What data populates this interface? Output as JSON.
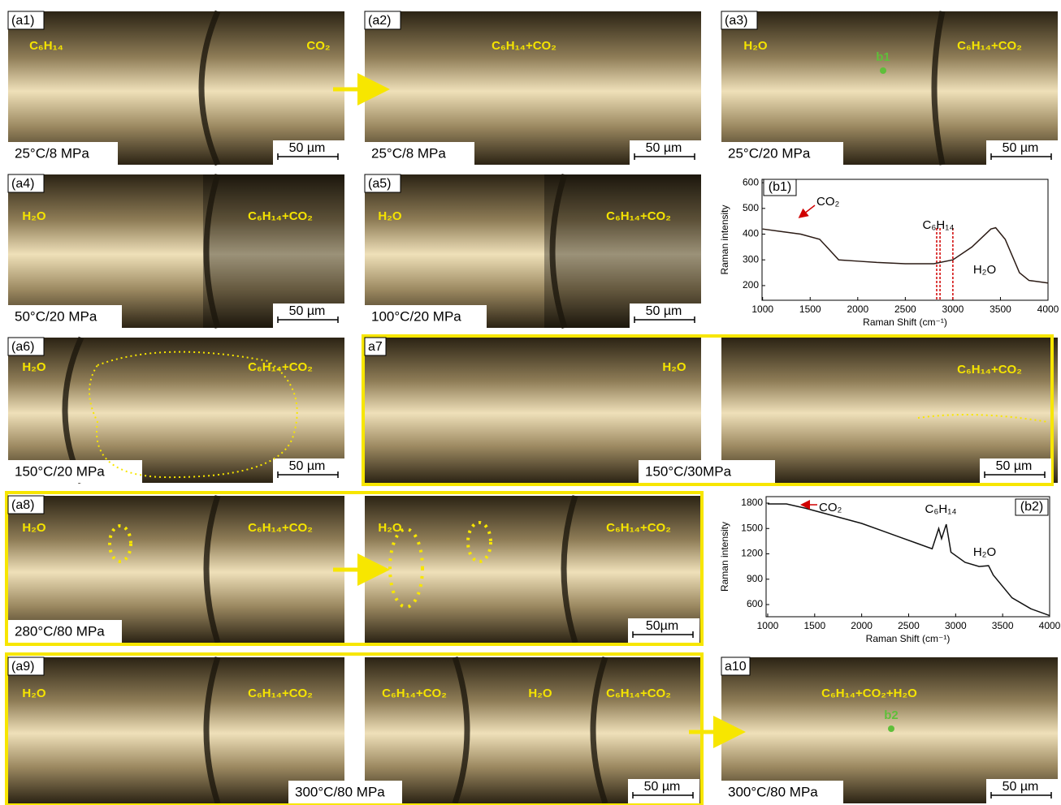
{
  "panels": [
    {
      "id": "(a1)",
      "phases": [
        "C₆H₁₄",
        "CO₂"
      ],
      "condition": "25°C/8 MPa",
      "scale": "50 µm"
    },
    {
      "id": "(a2)",
      "phases": [
        "C₆H₁₄+CO₂"
      ],
      "condition": "25°C/8 MPa",
      "scale": "50 µm"
    },
    {
      "id": "(a3)",
      "phases": [
        "H₂O",
        "C₆H₁₄+CO₂"
      ],
      "point": "b1",
      "condition": "25°C/20 MPa",
      "scale": "50 µm"
    },
    {
      "id": "(a4)",
      "phases": [
        "H₂O",
        "C₆H₁₄+CO₂"
      ],
      "condition": "50°C/20 MPa",
      "scale": "50 µm"
    },
    {
      "id": "(a5)",
      "phases": [
        "H₂O",
        "C₆H₁₄+CO₂"
      ],
      "condition": "100°C/20 MPa",
      "scale": "50 µm"
    },
    {
      "id": "(a6)",
      "phases": [
        "H₂O",
        "C₆H₁₄+CO₂"
      ],
      "condition": "150°C/20 MPa",
      "scale": "50 µm"
    },
    {
      "id": "a7",
      "phases": [
        "H₂O",
        "C₆H₁₄+CO₂"
      ],
      "condition": "150°C/30MPa",
      "scale": "50 µm"
    },
    {
      "id": "(a8)",
      "phases": [
        "H₂O",
        "C₆H₁₄+CO₂",
        "H₂O",
        "C₆H₁₄+CO₂"
      ],
      "condition": "280°C/80 MPa",
      "scale": "50µm"
    },
    {
      "id": "(a9)",
      "phases": [
        "H₂O",
        "C₆H₁₄+CO₂",
        "C₆H₁₄+CO₂",
        "H₂O",
        "C₆H₁₄+CO₂"
      ],
      "condition": "300°C/80 MPa",
      "scale": "50 µm"
    },
    {
      "id": "a10",
      "phases": [
        "C₆H₁₄+CO₂+H₂O"
      ],
      "point": "b2",
      "condition": "300°C/80 MPa",
      "scale": "50 µm"
    }
  ],
  "chart_data": [
    {
      "type": "line",
      "title": "(b1)",
      "x_label": "Raman Shift (cm⁻¹)",
      "y_label": "Raman intensity",
      "x": [
        1000,
        1200,
        1400,
        1600,
        1700,
        1800,
        2000,
        2200,
        2500,
        2800,
        3000,
        3200,
        3400,
        3450,
        3550,
        3700,
        3800,
        4000
      ],
      "values": [
        420,
        410,
        400,
        380,
        340,
        300,
        295,
        290,
        285,
        285,
        300,
        350,
        420,
        425,
        380,
        250,
        220,
        210
      ],
      "color": "#2a1a14",
      "xlim": [
        994,
        4000
      ],
      "xticks": [
        1000,
        1500,
        2000,
        2500,
        3000,
        3500,
        4000
      ],
      "ylim": [
        143,
        613
      ],
      "yticks": [
        200,
        300,
        400,
        500,
        600
      ],
      "reference_lines": [
        2830,
        2865,
        3000
      ],
      "reference_color": "#d00000",
      "annotations": [
        "CO₂",
        "C₆H₁₄",
        "H₂O"
      ]
    },
    {
      "type": "line",
      "title": "(b2)",
      "x_label": "Raman Shift (cm⁻¹)",
      "y_label": "Raman intensity",
      "x": [
        1000,
        1200,
        1400,
        1600,
        1800,
        2000,
        2200,
        2400,
        2600,
        2750,
        2820,
        2850,
        2900,
        2950,
        3100,
        3250,
        3350,
        3400,
        3600,
        3800,
        4000
      ],
      "values": [
        1790,
        1790,
        1740,
        1680,
        1620,
        1560,
        1480,
        1400,
        1320,
        1260,
        1500,
        1380,
        1550,
        1220,
        1100,
        1050,
        1060,
        950,
        680,
        550,
        470
      ],
      "color": "#111111",
      "xlim": [
        983,
        4000
      ],
      "xticks": [
        1000,
        1500,
        2000,
        2500,
        3000,
        3500,
        4000
      ],
      "ylim": [
        456,
        1877
      ],
      "yticks": [
        600,
        900,
        1200,
        1500,
        1800
      ],
      "annotations": [
        "CO₂",
        "C₆H₁₄",
        "H₂O"
      ]
    }
  ]
}
